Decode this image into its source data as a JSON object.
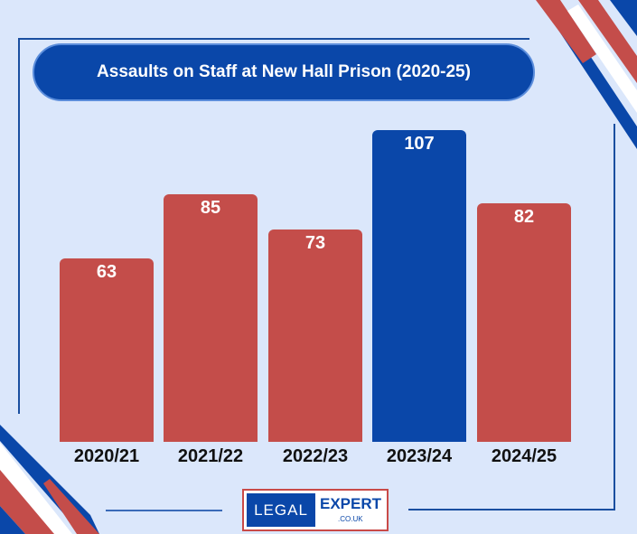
{
  "colors": {
    "background": "#dbe7fb",
    "bar_default": "#c44d4a",
    "bar_highlight": "#0a47a9",
    "title_bg": "#0a47a9"
  },
  "chart_data": {
    "type": "bar",
    "title": "Assaults on Staff at New Hall Prison (2020-25)",
    "categories": [
      "2020/21",
      "2021/22",
      "2022/23",
      "2023/24",
      "2024/25"
    ],
    "values": [
      63,
      85,
      73,
      107,
      82
    ],
    "highlight_index": 3,
    "ylim": [
      0,
      107
    ],
    "grid": false,
    "data_labels": [
      "63",
      "85",
      "73",
      "107",
      "82"
    ]
  },
  "logo": {
    "left": "LEGAL",
    "right": "EXPERT",
    "domain": ".CO.UK"
  }
}
